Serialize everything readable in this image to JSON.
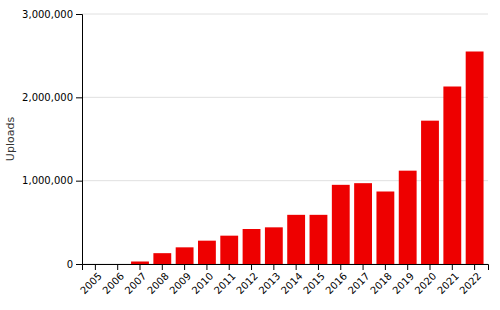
{
  "chart_data": {
    "type": "bar",
    "ylabel": "Uploads",
    "categories": [
      "2005",
      "2006",
      "2007",
      "2008",
      "2009",
      "2010",
      "2011",
      "2012",
      "2013",
      "2014",
      "2015",
      "2016",
      "2017",
      "2018",
      "2019",
      "2020",
      "2021",
      "2022"
    ],
    "values": [
      0,
      0,
      30000,
      130000,
      200000,
      280000,
      340000,
      420000,
      440000,
      590000,
      590000,
      950000,
      970000,
      870000,
      1120000,
      1720000,
      2130000,
      2550000
    ],
    "color": "#ee0000",
    "ylim": [
      0,
      3000000
    ],
    "yticks": [
      0,
      {
        "value": 1000000,
        "label": "1,000,000"
      },
      {
        "value": 2000000,
        "label": "2,000,000"
      },
      {
        "value": 3000000,
        "label": "3,000,000"
      }
    ],
    "grid": true
  }
}
